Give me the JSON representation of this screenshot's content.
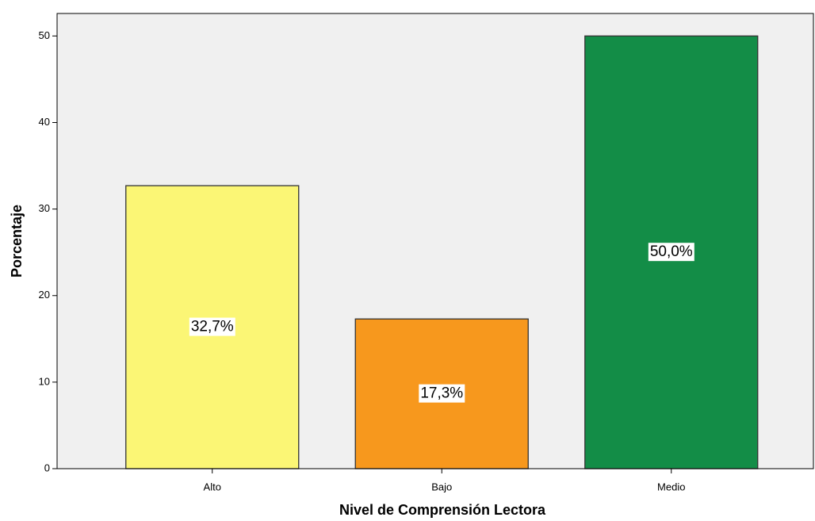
{
  "chart_data": {
    "type": "bar",
    "x_label": "Nivel de Comprensión Lectora",
    "y_label": "Porcentaje",
    "categories": [
      "Alto",
      "Bajo",
      "Medio"
    ],
    "values": [
      32.7,
      17.3,
      50.0
    ],
    "value_labels": [
      "32,7%",
      "17,3%",
      "50,0%"
    ],
    "colors": [
      "#fbf675",
      "#f7981d",
      "#138d47"
    ],
    "ylim": [
      0,
      52.6
    ],
    "yticks": [
      0,
      10,
      20,
      30,
      40,
      50
    ],
    "grid": false
  }
}
